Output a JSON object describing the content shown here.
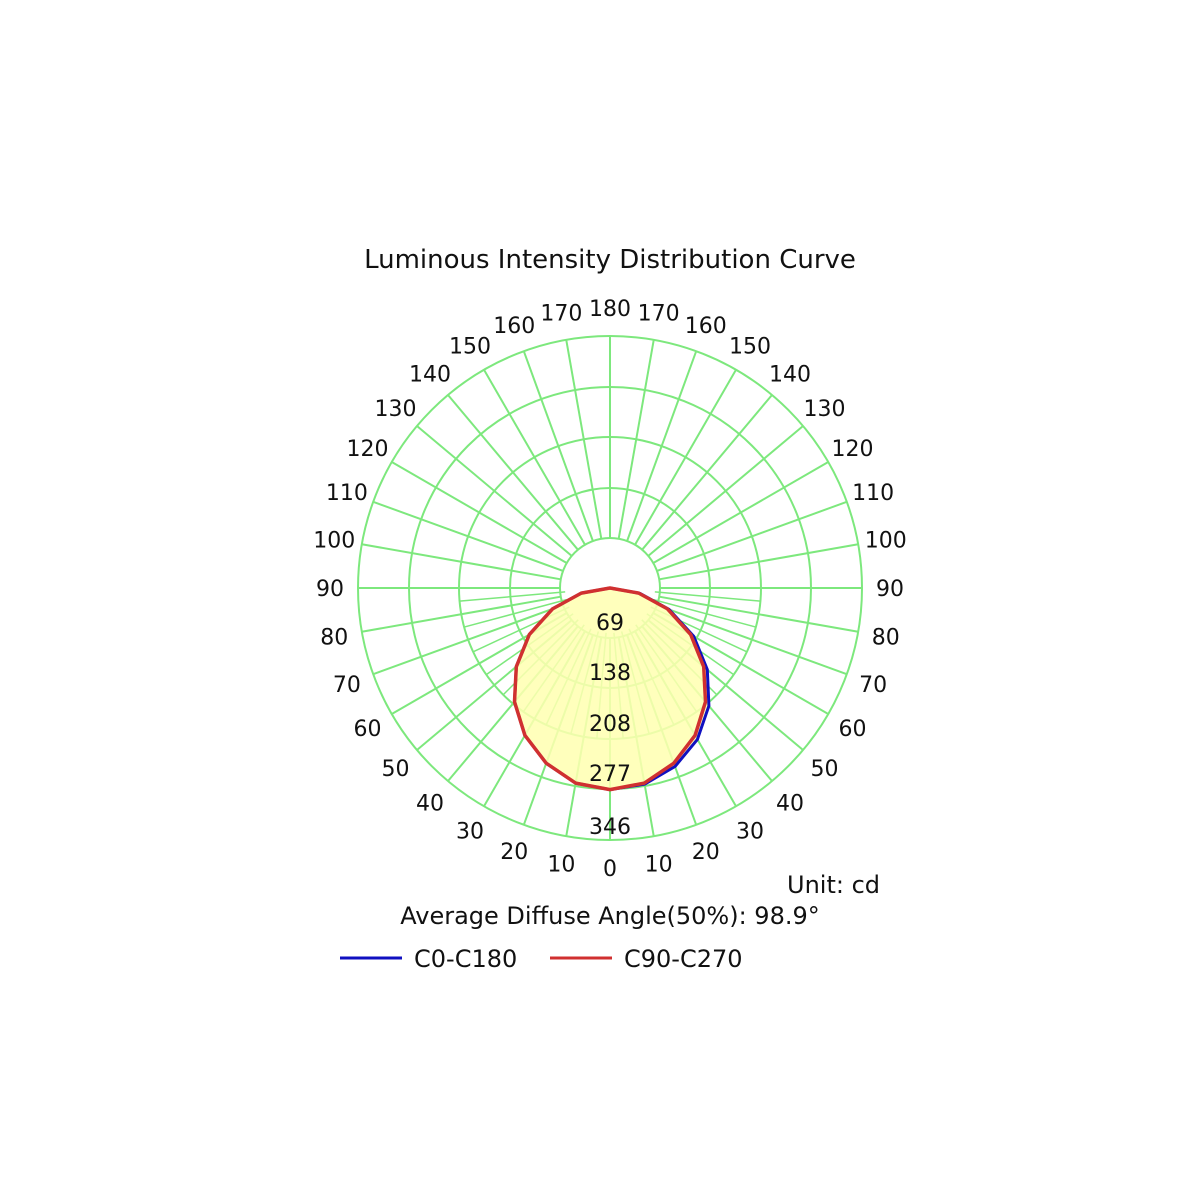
{
  "chart_data": {
    "type": "polar",
    "title": "Luminous Intensity Distribution Curve",
    "unit_label": "Unit: cd",
    "summary": "Average Diffuse Angle(50%): 98.9°",
    "center_label": "0",
    "left_angle_labels": [
      "10",
      "20",
      "30",
      "40",
      "50",
      "60",
      "70",
      "80",
      "90",
      "100",
      "110",
      "120",
      "130",
      "140",
      "150",
      "160",
      "170"
    ],
    "right_angle_labels": [
      "10",
      "20",
      "30",
      "40",
      "50",
      "60",
      "70",
      "80",
      "90",
      "100",
      "110",
      "120",
      "130",
      "140",
      "150",
      "160",
      "170"
    ],
    "top_angle_label": "180",
    "radial_ticks": [
      "69",
      "138",
      "208",
      "277",
      "346"
    ],
    "radial_max": 346,
    "gamma_step_deg": 10,
    "grid_color": "#7de87d",
    "fill_color": "#ffffb0",
    "series": [
      {
        "name": "C0-C180",
        "color": "#1010c0",
        "gamma": [
          0,
          10,
          20,
          30,
          40,
          50,
          60,
          70,
          80,
          90
        ],
        "left": [
          346,
          340,
          320,
          292,
          255,
          210,
          160,
          105,
          50,
          0
        ],
        "right": [
          346,
          342,
          326,
          300,
          264,
          218,
          166,
          108,
          52,
          0
        ]
      },
      {
        "name": "C90-C270",
        "color": "#d03030",
        "gamma": [
          0,
          10,
          20,
          30,
          40,
          50,
          60,
          70,
          80,
          90
        ],
        "left": [
          346,
          340,
          320,
          292,
          255,
          210,
          160,
          105,
          50,
          0
        ],
        "right": [
          346,
          340,
          320,
          292,
          255,
          210,
          160,
          105,
          50,
          0
        ]
      }
    ]
  }
}
